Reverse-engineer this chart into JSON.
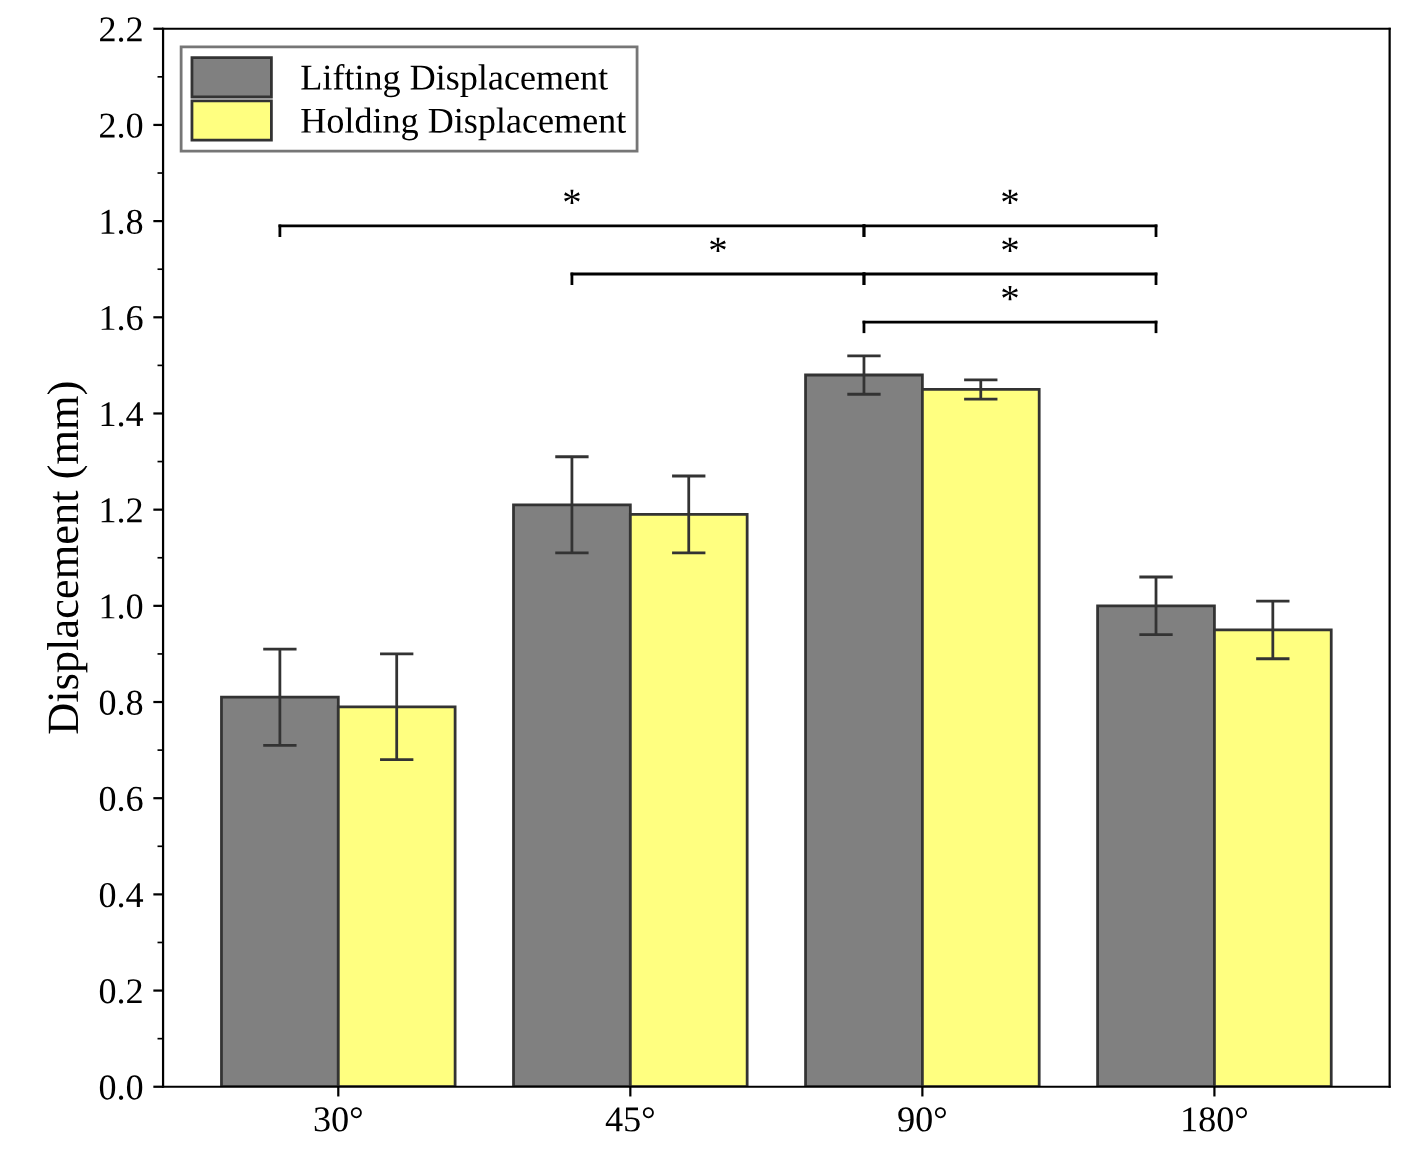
{
  "chart_data": {
    "type": "bar",
    "ylabel": "Displacement (mm)",
    "categories": [
      "30°",
      "45°",
      "90°",
      "180°"
    ],
    "series": [
      {
        "name": "Lifting Displacement",
        "color": "#808080",
        "values": [
          0.81,
          1.21,
          1.48,
          1.0
        ],
        "errors": [
          0.1,
          0.1,
          0.04,
          0.06
        ]
      },
      {
        "name": "Holding Displacement",
        "color": "#ffff80",
        "values": [
          0.79,
          1.19,
          1.45,
          0.95
        ],
        "errors": [
          0.11,
          0.08,
          0.02,
          0.06
        ]
      }
    ],
    "ylim": [
      0,
      2.2
    ],
    "yticks": [
      {
        "value": 0,
        "label": "0.0"
      },
      0.2,
      0.4,
      0.6,
      0.8,
      {
        "value": 1,
        "label": "1.0"
      },
      1.2,
      1.4,
      1.6,
      1.8,
      {
        "value": 2,
        "label": "2.0"
      },
      2.2
    ],
    "annotations": [
      "*",
      "*",
      "*",
      "*",
      "*"
    ],
    "legend": "top left",
    "grid": false
  }
}
